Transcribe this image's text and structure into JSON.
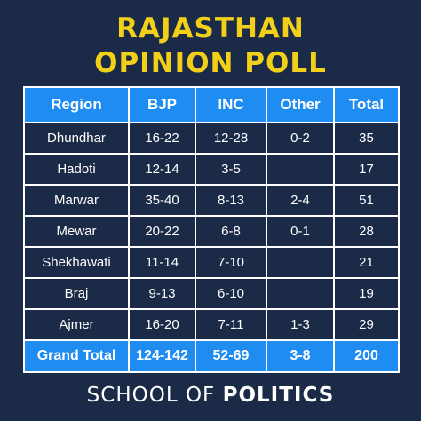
{
  "title": {
    "line1": "RAJASTHAN",
    "line2": "OPINION POLL"
  },
  "colors": {
    "background": "#1b2a47",
    "accent": "#1e8cf0",
    "title": "#f2d01a"
  },
  "footer": {
    "prefix": "SCHOOL OF",
    "brand": "POLITICS"
  },
  "chart_data": {
    "type": "table",
    "columns": [
      "Region",
      "BJP",
      "INC",
      "Other",
      "Total"
    ],
    "rows": [
      [
        "Dhundhar",
        "16-22",
        "12-28",
        "0-2",
        "35"
      ],
      [
        "Hadoti",
        "12-14",
        "3-5",
        "",
        "17"
      ],
      [
        "Marwar",
        "35-40",
        "8-13",
        "2-4",
        "51"
      ],
      [
        "Mewar",
        "20-22",
        "6-8",
        "0-1",
        "28"
      ],
      [
        "Shekhawati",
        "11-14",
        "7-10",
        "",
        "21"
      ],
      [
        "Braj",
        "9-13",
        "6-10",
        "",
        "19"
      ],
      [
        "Ajmer",
        "16-20",
        "7-11",
        "1-3",
        "29"
      ]
    ],
    "total_row": [
      "Grand Total",
      "124-142",
      "52-69",
      "3-8",
      "200"
    ]
  }
}
